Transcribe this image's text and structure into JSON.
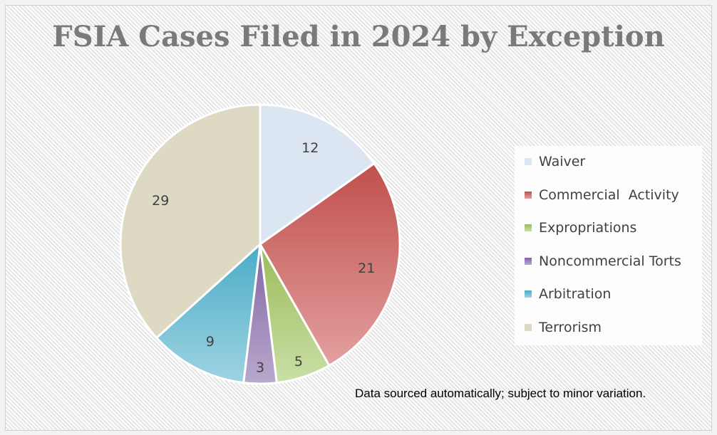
{
  "chart_data": {
    "type": "pie",
    "title": "FSIA Cases Filed in 2024 by Exception",
    "categories": [
      "Waiver",
      "Commercial  Activity",
      "Expropriations",
      "Noncommercial Torts",
      "Arbitration",
      "Terrorism"
    ],
    "values": [
      12,
      21,
      5,
      3,
      9,
      29
    ],
    "colors": [
      [
        "#dce6f2",
        "#dce6f2"
      ],
      [
        "#c0504d",
        "#e3a09f"
      ],
      [
        "#9bbb59",
        "#cadfa6"
      ],
      [
        "#8064a2",
        "#b9a9cd"
      ],
      [
        "#4bacc6",
        "#9dd3e2"
      ],
      [
        "#ddd9c3",
        "#ddd9c3"
      ]
    ],
    "legend_position": "right",
    "start_angle": "12 o'clock, clockwise"
  },
  "note": "Data sourced automatically; subject to minor variation."
}
